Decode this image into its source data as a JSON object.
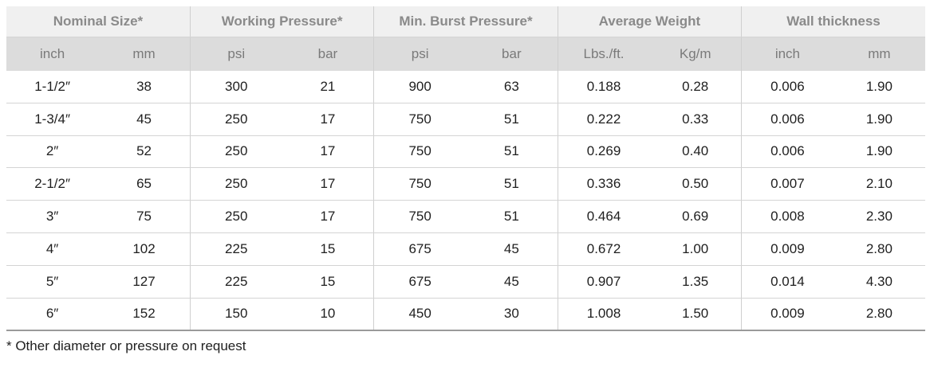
{
  "table": {
    "groups": [
      "Nominal Size*",
      "Working Pressure*",
      "Min. Burst Pressure*",
      "Average Weight",
      "Wall thickness"
    ],
    "units": [
      "inch",
      "mm",
      "psi",
      "bar",
      "psi",
      "bar",
      "Lbs./ft.",
      "Kg/m",
      "inch",
      "mm"
    ],
    "rows": [
      [
        "1-1/2″",
        "38",
        "300",
        "21",
        "900",
        "63",
        "0.188",
        "0.28",
        "0.006",
        "1.90"
      ],
      [
        "1-3/4″",
        "45",
        "250",
        "17",
        "750",
        "51",
        "0.222",
        "0.33",
        "0.006",
        "1.90"
      ],
      [
        "2″",
        "52",
        "250",
        "17",
        "750",
        "51",
        "0.269",
        "0.40",
        "0.006",
        "1.90"
      ],
      [
        "2-1/2″",
        "65",
        "250",
        "17",
        "750",
        "51",
        "0.336",
        "0.50",
        "0.007",
        "2.10"
      ],
      [
        "3″",
        "75",
        "250",
        "17",
        "750",
        "51",
        "0.464",
        "0.69",
        "0.008",
        "2.30"
      ],
      [
        "4″",
        "102",
        "225",
        "15",
        "675",
        "45",
        "0.672",
        "1.00",
        "0.009",
        "2.80"
      ],
      [
        "5″",
        "127",
        "225",
        "15",
        "675",
        "45",
        "0.907",
        "1.35",
        "0.014",
        "4.30"
      ],
      [
        "6″",
        "152",
        "150",
        "10",
        "450",
        "30",
        "1.008",
        "1.50",
        "0.009",
        "2.80"
      ]
    ]
  },
  "footnote": "* Other diameter or pressure on request"
}
